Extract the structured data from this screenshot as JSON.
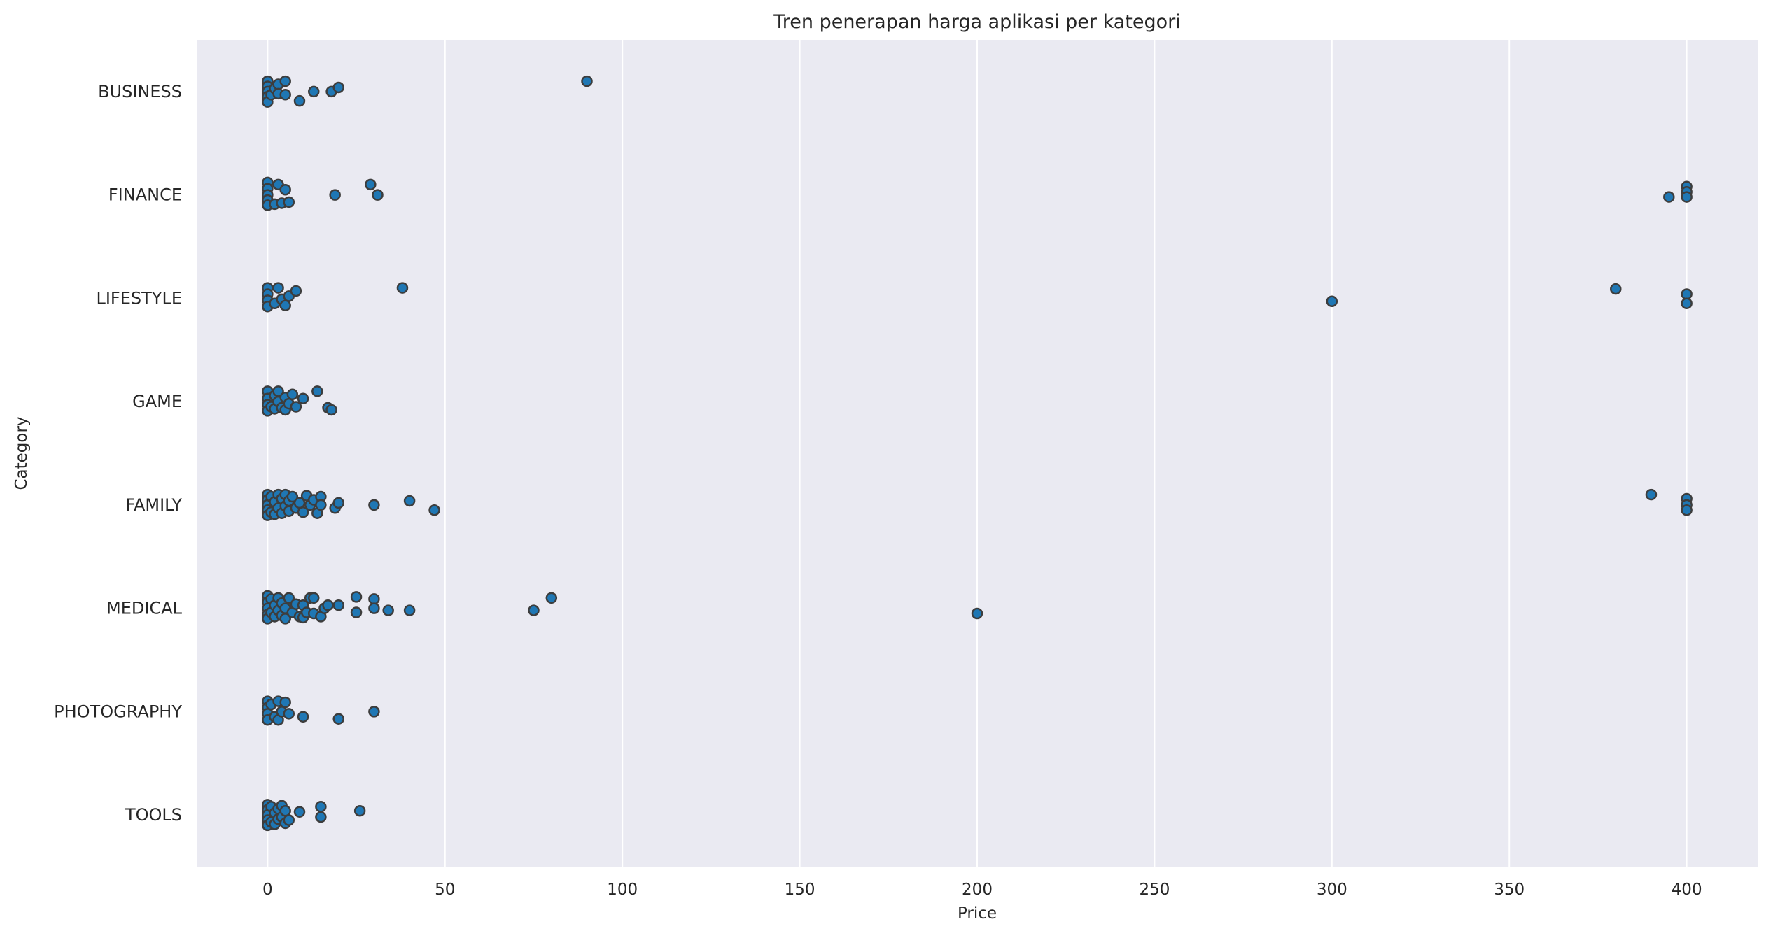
{
  "chart_data": {
    "type": "scatter",
    "subtype": "strip",
    "orientation": "horizontal",
    "title": "Tren penerapan harga aplikasi per kategori",
    "xlabel": "Price",
    "ylabel": "Category",
    "xlim": [
      -20,
      420
    ],
    "xticks": [
      0,
      50,
      100,
      150,
      200,
      250,
      300,
      350,
      400
    ],
    "grid": "x",
    "legend": "none",
    "background_color": "#eaeaf2",
    "marker_color": "#1f77b4",
    "marker_edge_color": "#3d3d3d",
    "categories": [
      "BUSINESS",
      "FINANCE",
      "LIFESTYLE",
      "GAME",
      "FAMILY",
      "MEDICAL",
      "PHOTOGRAPHY",
      "TOOLS"
    ],
    "series": [
      {
        "category": "BUSINESS",
        "points": [
          {
            "x": 0,
            "j": -0.1
          },
          {
            "x": 0,
            "j": -0.05
          },
          {
            "x": 0,
            "j": 0.0
          },
          {
            "x": 0,
            "j": 0.05
          },
          {
            "x": 0,
            "j": 0.1
          },
          {
            "x": 1,
            "j": 0.03
          },
          {
            "x": 2,
            "j": -0.03
          },
          {
            "x": 3,
            "j": -0.07
          },
          {
            "x": 3,
            "j": 0.02
          },
          {
            "x": 5,
            "j": -0.1
          },
          {
            "x": 5,
            "j": 0.03
          },
          {
            "x": 9,
            "j": 0.09
          },
          {
            "x": 13,
            "j": 0.0
          },
          {
            "x": 18,
            "j": 0.0
          },
          {
            "x": 20,
            "j": -0.04
          },
          {
            "x": 90,
            "j": -0.1
          }
        ]
      },
      {
        "category": "FINANCE",
        "points": [
          {
            "x": 0,
            "j": -0.12
          },
          {
            "x": 0,
            "j": -0.06
          },
          {
            "x": 0,
            "j": 0.0
          },
          {
            "x": 0,
            "j": 0.05
          },
          {
            "x": 0,
            "j": 0.1
          },
          {
            "x": 2,
            "j": 0.09
          },
          {
            "x": 3,
            "j": -0.1
          },
          {
            "x": 4,
            "j": 0.08
          },
          {
            "x": 5,
            "j": -0.05
          },
          {
            "x": 6,
            "j": 0.07
          },
          {
            "x": 19,
            "j": 0.0
          },
          {
            "x": 29,
            "j": -0.1
          },
          {
            "x": 31,
            "j": 0.0
          },
          {
            "x": 395,
            "j": 0.02
          },
          {
            "x": 400,
            "j": -0.08
          },
          {
            "x": 400,
            "j": -0.03
          },
          {
            "x": 400,
            "j": 0.02
          }
        ]
      },
      {
        "category": "LIFESTYLE",
        "points": [
          {
            "x": 0,
            "j": -0.1
          },
          {
            "x": 0,
            "j": -0.04
          },
          {
            "x": 0,
            "j": 0.02
          },
          {
            "x": 0,
            "j": 0.08
          },
          {
            "x": 2,
            "j": 0.05
          },
          {
            "x": 3,
            "j": -0.1
          },
          {
            "x": 4,
            "j": 0.01
          },
          {
            "x": 5,
            "j": 0.07
          },
          {
            "x": 6,
            "j": -0.02
          },
          {
            "x": 8,
            "j": -0.07
          },
          {
            "x": 38,
            "j": -0.1
          },
          {
            "x": 300,
            "j": 0.03
          },
          {
            "x": 380,
            "j": -0.09
          },
          {
            "x": 400,
            "j": -0.04
          },
          {
            "x": 400,
            "j": 0.05
          }
        ]
      },
      {
        "category": "GAME",
        "points": [
          {
            "x": 0,
            "j": -0.1
          },
          {
            "x": 0,
            "j": -0.03
          },
          {
            "x": 0,
            "j": 0.03
          },
          {
            "x": 0,
            "j": 0.09
          },
          {
            "x": 1,
            "j": 0.05
          },
          {
            "x": 2,
            "j": -0.06
          },
          {
            "x": 2,
            "j": 0.07
          },
          {
            "x": 3,
            "j": -0.1
          },
          {
            "x": 3,
            "j": 0.0
          },
          {
            "x": 4,
            "j": 0.06
          },
          {
            "x": 5,
            "j": -0.04
          },
          {
            "x": 5,
            "j": 0.08
          },
          {
            "x": 6,
            "j": 0.02
          },
          {
            "x": 7,
            "j": -0.07
          },
          {
            "x": 8,
            "j": 0.05
          },
          {
            "x": 10,
            "j": -0.03
          },
          {
            "x": 14,
            "j": -0.1
          },
          {
            "x": 17,
            "j": 0.06
          },
          {
            "x": 18,
            "j": 0.08
          }
        ]
      },
      {
        "category": "FAMILY",
        "points": [
          {
            "x": 0,
            "j": -0.1
          },
          {
            "x": 0,
            "j": -0.05
          },
          {
            "x": 0,
            "j": 0.0
          },
          {
            "x": 0,
            "j": 0.05
          },
          {
            "x": 0,
            "j": 0.1
          },
          {
            "x": 1,
            "j": -0.08
          },
          {
            "x": 1,
            "j": 0.07
          },
          {
            "x": 2,
            "j": -0.03
          },
          {
            "x": 2,
            "j": 0.09
          },
          {
            "x": 3,
            "j": 0.03
          },
          {
            "x": 3,
            "j": -0.1
          },
          {
            "x": 4,
            "j": 0.08
          },
          {
            "x": 4,
            "j": -0.06
          },
          {
            "x": 5,
            "j": 0.01
          },
          {
            "x": 5,
            "j": -0.1
          },
          {
            "x": 6,
            "j": 0.06
          },
          {
            "x": 6,
            "j": -0.04
          },
          {
            "x": 7,
            "j": -0.08
          },
          {
            "x": 8,
            "j": 0.03
          },
          {
            "x": 9,
            "j": -0.02
          },
          {
            "x": 10,
            "j": 0.07
          },
          {
            "x": 11,
            "j": -0.09
          },
          {
            "x": 12,
            "j": 0.0
          },
          {
            "x": 13,
            "j": -0.05
          },
          {
            "x": 14,
            "j": 0.08
          },
          {
            "x": 15,
            "j": -0.08
          },
          {
            "x": 15,
            "j": 0.0
          },
          {
            "x": 19,
            "j": 0.03
          },
          {
            "x": 20,
            "j": -0.02
          },
          {
            "x": 30,
            "j": 0.0
          },
          {
            "x": 40,
            "j": -0.04
          },
          {
            "x": 47,
            "j": 0.05
          },
          {
            "x": 390,
            "j": -0.1
          },
          {
            "x": 400,
            "j": -0.06
          },
          {
            "x": 400,
            "j": 0.0
          },
          {
            "x": 400,
            "j": 0.05
          }
        ]
      },
      {
        "category": "MEDICAL",
        "points": [
          {
            "x": 0,
            "j": -0.12
          },
          {
            "x": 0,
            "j": -0.06
          },
          {
            "x": 0,
            "j": 0.0
          },
          {
            "x": 0,
            "j": 0.06
          },
          {
            "x": 0,
            "j": 0.1
          },
          {
            "x": 1,
            "j": -0.09
          },
          {
            "x": 1,
            "j": 0.04
          },
          {
            "x": 2,
            "j": -0.03
          },
          {
            "x": 2,
            "j": 0.08
          },
          {
            "x": 3,
            "j": 0.02
          },
          {
            "x": 3,
            "j": -0.1
          },
          {
            "x": 4,
            "j": 0.07
          },
          {
            "x": 4,
            "j": -0.05
          },
          {
            "x": 5,
            "j": 0.0
          },
          {
            "x": 5,
            "j": 0.1
          },
          {
            "x": 6,
            "j": -0.1
          },
          {
            "x": 7,
            "j": 0.04
          },
          {
            "x": 8,
            "j": -0.04
          },
          {
            "x": 9,
            "j": 0.08
          },
          {
            "x": 10,
            "j": -0.03
          },
          {
            "x": 10,
            "j": 0.09
          },
          {
            "x": 11,
            "j": 0.04
          },
          {
            "x": 12,
            "j": -0.1
          },
          {
            "x": 13,
            "j": 0.05
          },
          {
            "x": 13,
            "j": -0.1
          },
          {
            "x": 15,
            "j": 0.08
          },
          {
            "x": 16,
            "j": 0.0
          },
          {
            "x": 17,
            "j": -0.03
          },
          {
            "x": 20,
            "j": -0.03
          },
          {
            "x": 25,
            "j": -0.11
          },
          {
            "x": 25,
            "j": 0.04
          },
          {
            "x": 30,
            "j": -0.09
          },
          {
            "x": 30,
            "j": 0.0
          },
          {
            "x": 34,
            "j": 0.02
          },
          {
            "x": 40,
            "j": 0.02
          },
          {
            "x": 75,
            "j": 0.02
          },
          {
            "x": 80,
            "j": -0.1
          },
          {
            "x": 200,
            "j": 0.05
          }
        ]
      },
      {
        "category": "PHOTOGRAPHY",
        "points": [
          {
            "x": 0,
            "j": -0.1
          },
          {
            "x": 0,
            "j": -0.04
          },
          {
            "x": 0,
            "j": 0.02
          },
          {
            "x": 0,
            "j": 0.08
          },
          {
            "x": 1,
            "j": -0.07
          },
          {
            "x": 2,
            "j": 0.05
          },
          {
            "x": 3,
            "j": -0.1
          },
          {
            "x": 3,
            "j": 0.08
          },
          {
            "x": 4,
            "j": 0.0
          },
          {
            "x": 5,
            "j": -0.09
          },
          {
            "x": 6,
            "j": 0.02
          },
          {
            "x": 10,
            "j": 0.05
          },
          {
            "x": 20,
            "j": 0.07
          },
          {
            "x": 30,
            "j": 0.0
          }
        ]
      },
      {
        "category": "TOOLS",
        "points": [
          {
            "x": 0,
            "j": -0.1
          },
          {
            "x": 0,
            "j": -0.05
          },
          {
            "x": 0,
            "j": 0.0
          },
          {
            "x": 0,
            "j": 0.05
          },
          {
            "x": 0,
            "j": 0.1
          },
          {
            "x": 1,
            "j": -0.08
          },
          {
            "x": 1,
            "j": 0.07
          },
          {
            "x": 2,
            "j": -0.02
          },
          {
            "x": 2,
            "j": 0.09
          },
          {
            "x": 3,
            "j": 0.04
          },
          {
            "x": 3,
            "j": -0.06
          },
          {
            "x": 4,
            "j": -0.09
          },
          {
            "x": 4,
            "j": 0.02
          },
          {
            "x": 5,
            "j": 0.08
          },
          {
            "x": 5,
            "j": -0.04
          },
          {
            "x": 6,
            "j": 0.05
          },
          {
            "x": 9,
            "j": -0.03
          },
          {
            "x": 15,
            "j": -0.08
          },
          {
            "x": 15,
            "j": 0.02
          },
          {
            "x": 26,
            "j": -0.04
          }
        ]
      }
    ]
  }
}
